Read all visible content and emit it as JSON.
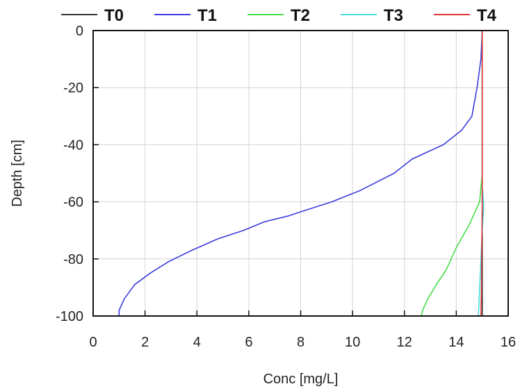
{
  "chart_data": {
    "type": "line",
    "xlabel": "Conc [mg/L]",
    "ylabel": "Depth [cm]",
    "xlim": [
      0,
      16
    ],
    "ylim": [
      -100,
      0
    ],
    "x_ticks": [
      0,
      2,
      4,
      6,
      8,
      10,
      12,
      14,
      16
    ],
    "y_ticks": [
      0,
      -20,
      -40,
      -60,
      -80,
      -100
    ],
    "grid": true,
    "legend_position": "top",
    "series": [
      {
        "name": "T0",
        "color": "#333333",
        "points": [
          [
            15.0,
            0
          ],
          [
            15.0,
            -100
          ]
        ]
      },
      {
        "name": "T1",
        "color": "#3a3adf",
        "points": [
          [
            15.0,
            0
          ],
          [
            14.95,
            -10
          ],
          [
            14.8,
            -20
          ],
          [
            14.6,
            -30
          ],
          [
            14.2,
            -35
          ],
          [
            13.5,
            -40
          ],
          [
            12.3,
            -45
          ],
          [
            11.6,
            -50
          ],
          [
            10.3,
            -56
          ],
          [
            9.2,
            -60
          ],
          [
            8.0,
            -63.5
          ],
          [
            7.5,
            -65
          ],
          [
            6.6,
            -67
          ],
          [
            5.8,
            -70
          ],
          [
            4.8,
            -73
          ],
          [
            3.8,
            -77
          ],
          [
            2.9,
            -81
          ],
          [
            2.2,
            -85
          ],
          [
            1.6,
            -89
          ],
          [
            1.2,
            -94
          ],
          [
            1.0,
            -98
          ],
          [
            1.0,
            -100
          ]
        ]
      },
      {
        "name": "T2",
        "color": "#44dd44",
        "points": [
          [
            15.0,
            0
          ],
          [
            15.0,
            -50
          ],
          [
            14.95,
            -55
          ],
          [
            14.9,
            -60
          ],
          [
            14.75,
            -63
          ],
          [
            14.5,
            -68
          ],
          [
            14.0,
            -76
          ],
          [
            13.6,
            -84
          ],
          [
            13.3,
            -88
          ],
          [
            12.9,
            -94
          ],
          [
            12.7,
            -98
          ],
          [
            12.65,
            -100
          ]
        ]
      },
      {
        "name": "T3",
        "color": "#44dddd",
        "points": [
          [
            15.0,
            0
          ],
          [
            15.0,
            -55
          ],
          [
            15.05,
            -60
          ],
          [
            15.05,
            -63
          ],
          [
            15.0,
            -70
          ],
          [
            14.95,
            -80
          ],
          [
            14.9,
            -90
          ],
          [
            14.85,
            -100
          ]
        ]
      },
      {
        "name": "T4",
        "color": "#dd3333",
        "points": [
          [
            15.0,
            0
          ],
          [
            15.0,
            -60
          ],
          [
            14.98,
            -80
          ],
          [
            14.97,
            -90
          ],
          [
            14.95,
            -100
          ]
        ]
      }
    ]
  }
}
